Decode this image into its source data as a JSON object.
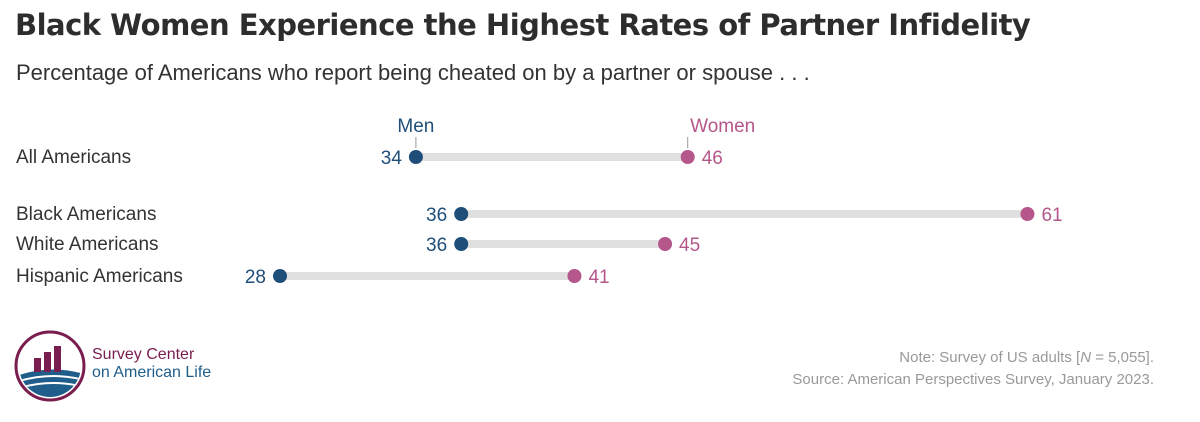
{
  "title": "Black Women Experience the Highest Rates of Partner Infidelity",
  "subtitle": "Percentage of Americans who report being cheated on by a partner or spouse . . .",
  "colors": {
    "men": "#1f4e79",
    "women": "#b5578a",
    "bar": "#e0e0e0",
    "text": "#333333"
  },
  "chart_data": {
    "type": "dumbbell",
    "series": [
      {
        "name": "Men",
        "color": "#1f4e79"
      },
      {
        "name": "Women",
        "color": "#b5578a"
      }
    ],
    "categories": [
      "All Americans",
      "Black Americans",
      "White Americans",
      "Hispanic Americans"
    ],
    "men": [
      34,
      36,
      36,
      28
    ],
    "women": [
      46,
      61,
      45,
      41
    ],
    "unit": "percent",
    "legend": "labels above first row"
  },
  "logo": {
    "line1": "Survey Center",
    "line2": "on American Life"
  },
  "note": {
    "line1_prefix": "Note: Survey of US adults [",
    "line1_n": "N",
    "line1_suffix": " = 5,055].",
    "line2": "Source: American Perspectives Survey, January 2023."
  }
}
